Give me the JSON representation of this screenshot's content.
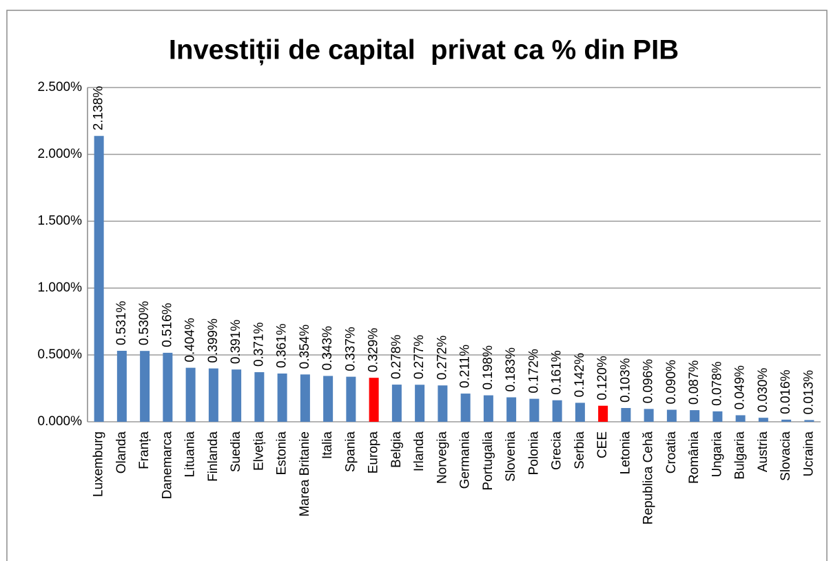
{
  "chart_data": {
    "type": "bar",
    "title": "Investiții de capital  privat ca % din PIB",
    "categories": [
      "Luxemburg",
      "Olanda",
      "Franța",
      "Danemarca",
      "Lituania",
      "Finlanda",
      "Suedia",
      "Elveția",
      "Estonia",
      "Marea Britanie",
      "Italia",
      "Spania",
      "Europa",
      "Belgia",
      "Irlanda",
      "Norvegia",
      "Germania",
      "Portugalia",
      "Slovenia",
      "Polonia",
      "Grecia",
      "Serbia",
      "CEE",
      "Letonia",
      "Republica Cehă",
      "Croatia",
      "România",
      "Ungaria",
      "Bulgaria",
      "Austria",
      "Slovacia",
      "Ucraina"
    ],
    "values": [
      2.138,
      0.531,
      0.53,
      0.516,
      0.404,
      0.399,
      0.391,
      0.371,
      0.361,
      0.354,
      0.343,
      0.337,
      0.329,
      0.278,
      0.277,
      0.272,
      0.211,
      0.198,
      0.183,
      0.172,
      0.161,
      0.142,
      0.12,
      0.103,
      0.096,
      0.09,
      0.087,
      0.078,
      0.049,
      0.03,
      0.016,
      0.013
    ],
    "value_labels": [
      "2.138%",
      "0.531%",
      "0.530%",
      "0.516%",
      "0.404%",
      "0.399%",
      "0.391%",
      "0.371%",
      "0.361%",
      "0.354%",
      "0.343%",
      "0.337%",
      "0.329%",
      "0.278%",
      "0.277%",
      "0.272%",
      "0.211%",
      "0.198%",
      "0.183%",
      "0.172%",
      "0.161%",
      "0.142%",
      "0.120%",
      "0.103%",
      "0.096%",
      "0.090%",
      "0.087%",
      "0.078%",
      "0.049%",
      "0.030%",
      "0.016%",
      "0.013%"
    ],
    "colors": [
      "#4f81bd",
      "#4f81bd",
      "#4f81bd",
      "#4f81bd",
      "#4f81bd",
      "#4f81bd",
      "#4f81bd",
      "#4f81bd",
      "#4f81bd",
      "#4f81bd",
      "#4f81bd",
      "#4f81bd",
      "#ff0000",
      "#4f81bd",
      "#4f81bd",
      "#4f81bd",
      "#4f81bd",
      "#4f81bd",
      "#4f81bd",
      "#4f81bd",
      "#4f81bd",
      "#4f81bd",
      "#ff0000",
      "#4f81bd",
      "#4f81bd",
      "#4f81bd",
      "#4f81bd",
      "#4f81bd",
      "#4f81bd",
      "#4f81bd",
      "#4f81bd",
      "#4f81bd"
    ],
    "ylim": [
      0,
      2.5
    ],
    "yticks": [
      {
        "value": 0,
        "label": "0.000%"
      },
      {
        "value": 0.5,
        "label": "0.500%"
      },
      {
        "value": 1,
        "label": "1.000%"
      },
      {
        "value": 1.5,
        "label": "1.500%"
      },
      {
        "value": 2,
        "label": "2.000%"
      },
      {
        "value": 2.5,
        "label": "2.500%"
      }
    ],
    "grid": true
  }
}
